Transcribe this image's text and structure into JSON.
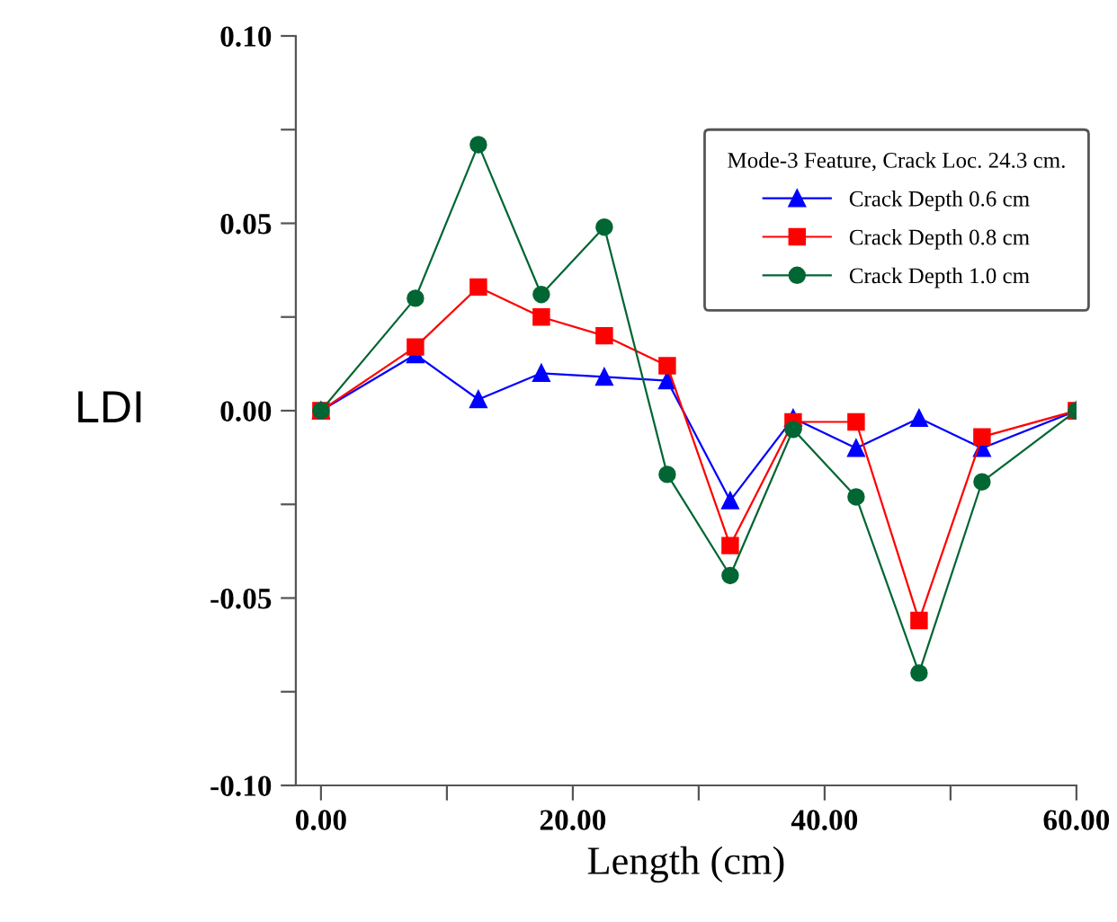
{
  "chart_data": {
    "type": "line",
    "xlabel": "Length (cm)",
    "ylabel": "LDI",
    "legend_title": "Mode-3 Feature, Crack Loc. 24.3 cm.",
    "x": [
      0,
      7.5,
      12.5,
      17.5,
      22.5,
      27.5,
      32.5,
      37.5,
      42.5,
      47.5,
      52.5,
      60
    ],
    "series": [
      {
        "name": "Crack Depth 0.6 cm",
        "color": "#0000ff",
        "marker": "triangle",
        "values": [
          0,
          0.015,
          0.003,
          0.01,
          0.009,
          0.008,
          -0.024,
          -0.002,
          -0.01,
          -0.002,
          -0.01,
          0
        ]
      },
      {
        "name": "Crack Depth 0.8 cm",
        "color": "#ff0000",
        "marker": "square",
        "values": [
          0,
          0.017,
          0.033,
          0.025,
          0.02,
          0.012,
          -0.036,
          -0.003,
          -0.003,
          -0.056,
          -0.007,
          0
        ]
      },
      {
        "name": "Crack Depth 1.0 cm",
        "color": "#006633",
        "marker": "circle",
        "values": [
          0,
          0.03,
          0.071,
          0.031,
          0.049,
          -0.017,
          -0.044,
          -0.005,
          -0.023,
          -0.07,
          -0.019,
          0
        ]
      }
    ],
    "xlim": [
      -2,
      60
    ],
    "ylim": [
      -0.1,
      0.1
    ],
    "xticks": [
      {
        "value": 0,
        "label": "0.00"
      },
      {
        "value": 10,
        "label": null
      },
      {
        "value": 20,
        "label": "20.00"
      },
      {
        "value": 30,
        "label": null
      },
      {
        "value": 40,
        "label": "40.00"
      },
      {
        "value": 50,
        "label": null
      },
      {
        "value": 60,
        "label": "60.00"
      }
    ],
    "yticks": [
      {
        "value": -0.1,
        "label": "-0.10"
      },
      {
        "value": -0.075,
        "label": null
      },
      {
        "value": -0.05,
        "label": "-0.05"
      },
      {
        "value": -0.025,
        "label": null
      },
      {
        "value": 0,
        "label": "0.00"
      },
      {
        "value": 0.025,
        "label": null
      },
      {
        "value": 0.05,
        "label": "0.05"
      },
      {
        "value": 0.075,
        "label": null
      },
      {
        "value": 0.1,
        "label": "0.10"
      }
    ],
    "grid": false,
    "legend": "top right",
    "line_style": "solid"
  }
}
